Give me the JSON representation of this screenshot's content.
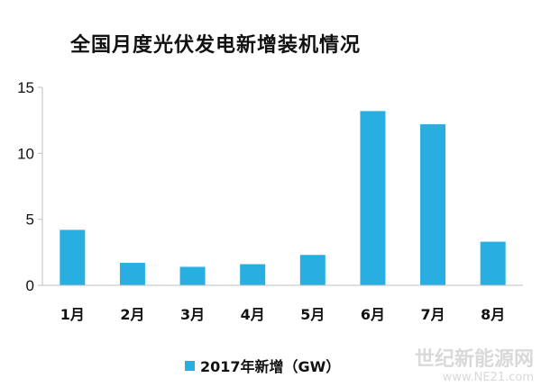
{
  "chart_data": {
    "type": "bar",
    "title": "全国月度光伏发电新增装机情况",
    "categories": [
      "1月",
      "2月",
      "3月",
      "4月",
      "5月",
      "6月",
      "7月",
      "8月"
    ],
    "series": [
      {
        "name": "2017年新增（GW）",
        "values": [
          4.2,
          1.7,
          1.4,
          1.6,
          2.3,
          13.2,
          12.2,
          3.3
        ]
      }
    ],
    "yticks": [
      0,
      5,
      10,
      15
    ],
    "ylim": [
      0,
      15
    ],
    "xlabel": "",
    "ylabel": "",
    "grid": false,
    "legend_position": "bottom",
    "bar_color": "#29aee1"
  },
  "watermark": {
    "line1": "世纪新能源网",
    "line2": "www.NE21.com"
  }
}
